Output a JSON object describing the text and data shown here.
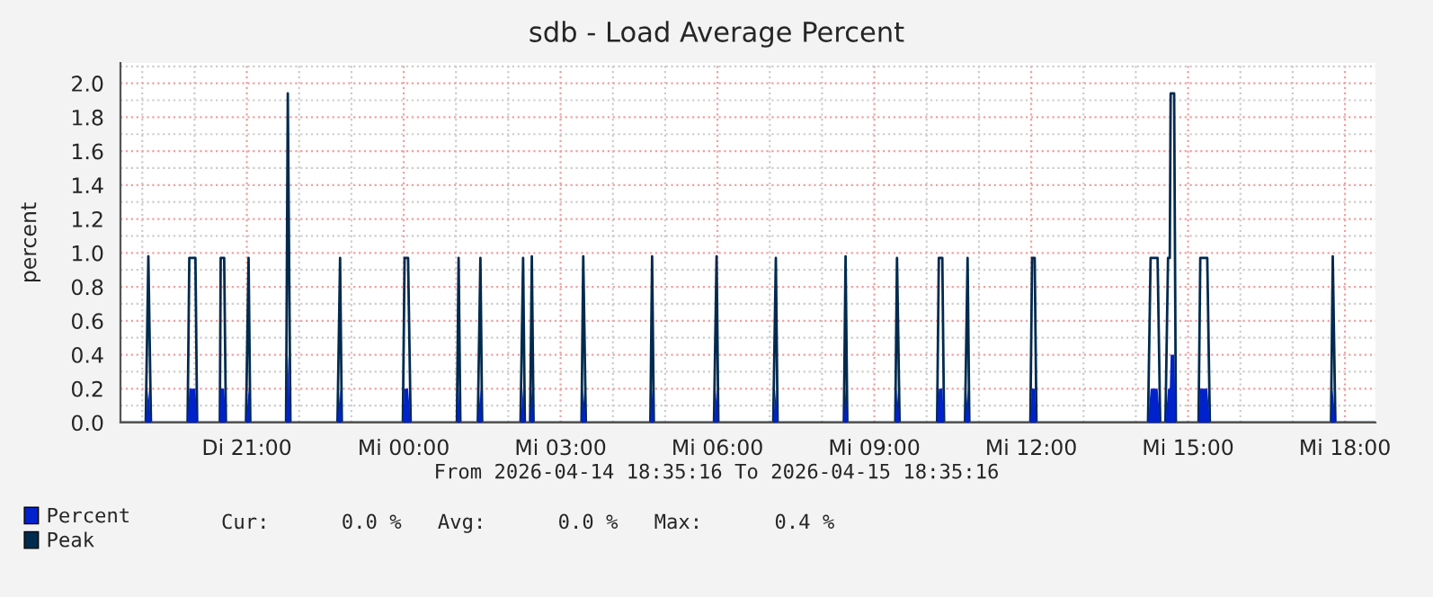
{
  "chart_data": {
    "type": "area",
    "title": "sdb - Load Average Percent",
    "ylabel": "percent",
    "annotations": [
      "From 2026-04-14 18:35:16 To 2026-04-15 18:35:16",
      "Cur:      0.0 %   Avg:      0.0 %   Max:      0.4 %"
    ],
    "xlim": [
      "2026-04-14T18:35",
      "2026-04-15T18:35"
    ],
    "ylim": [
      0,
      2.12
    ],
    "xticks": [
      {
        "value": "2026-04-14T21:00",
        "label": "Di 21:00"
      },
      {
        "value": "2026-04-15T00:00",
        "label": "Mi 00:00"
      },
      {
        "value": "2026-04-15T03:00",
        "label": "Mi 03:00"
      },
      {
        "value": "2026-04-15T06:00",
        "label": "Mi 06:00"
      },
      {
        "value": "2026-04-15T09:00",
        "label": "Mi 09:00"
      },
      {
        "value": "2026-04-15T12:00",
        "label": "Mi 12:00"
      },
      {
        "value": "2026-04-15T15:00",
        "label": "Mi 15:00"
      },
      {
        "value": "2026-04-15T18:00",
        "label": "Mi 18:00"
      }
    ],
    "yticks": [
      {
        "value": 0,
        "label": "0.0"
      },
      {
        "value": 0.2,
        "label": "0.2"
      },
      {
        "value": 0.4,
        "label": "0.4"
      },
      {
        "value": 0.6,
        "label": "0.6"
      },
      {
        "value": 0.8,
        "label": "0.8"
      },
      {
        "value": 1.0,
        "label": "1.0"
      },
      {
        "value": 1.2,
        "label": "1.2"
      },
      {
        "value": 1.4,
        "label": "1.4"
      },
      {
        "value": 1.6,
        "label": "1.6"
      },
      {
        "value": 1.8,
        "label": "1.8"
      },
      {
        "value": 2.0,
        "label": "2.0"
      }
    ],
    "grid": true,
    "legend": "bottom left",
    "x": [
      "2026-04-14T18:36",
      "2026-04-14T19:04",
      "2026-04-14T19:07",
      "2026-04-14T19:10",
      "2026-04-14T19:52",
      "2026-04-14T19:54",
      "2026-04-14T20:01",
      "2026-04-14T20:03",
      "2026-04-14T20:29",
      "2026-04-14T20:30",
      "2026-04-14T20:34",
      "2026-04-14T20:36",
      "2026-04-14T20:59",
      "2026-04-14T21:02",
      "2026-04-14T21:04",
      "2026-04-14T21:45",
      "2026-04-14T21:47",
      "2026-04-14T21:50",
      "2026-04-14T22:44",
      "2026-04-14T22:47",
      "2026-04-14T22:49",
      "2026-04-14T23:59",
      "2026-04-15T00:01",
      "2026-04-15T00:05",
      "2026-04-15T00:08",
      "2026-04-15T01:01",
      "2026-04-15T01:03",
      "2026-04-15T01:05",
      "2026-04-15T01:25",
      "2026-04-15T01:28",
      "2026-04-15T01:30",
      "2026-04-15T02:14",
      "2026-04-15T02:17",
      "2026-04-15T02:19",
      "2026-04-15T02:25",
      "2026-04-15T02:27",
      "2026-04-15T02:29",
      "2026-04-15T03:24",
      "2026-04-15T03:26",
      "2026-04-15T03:29",
      "2026-04-15T04:43",
      "2026-04-15T04:45",
      "2026-04-15T04:47",
      "2026-04-15T05:56",
      "2026-04-15T05:59",
      "2026-04-15T06:01",
      "2026-04-15T07:04",
      "2026-04-15T07:07",
      "2026-04-15T07:09",
      "2026-04-15T08:25",
      "2026-04-15T08:27",
      "2026-04-15T08:29",
      "2026-04-15T09:24",
      "2026-04-15T09:26",
      "2026-04-15T09:29",
      "2026-04-15T10:12",
      "2026-04-15T10:14",
      "2026-04-15T10:18",
      "2026-04-15T10:20",
      "2026-04-15T10:44",
      "2026-04-15T10:47",
      "2026-04-15T10:49",
      "2026-04-15T11:59",
      "2026-04-15T12:01",
      "2026-04-15T12:04",
      "2026-04-15T12:06",
      "2026-04-15T14:14",
      "2026-04-15T14:17",
      "2026-04-15T14:25",
      "2026-04-15T14:28",
      "2026-04-15T14:34",
      "2026-04-15T14:37",
      "2026-04-15T14:39",
      "2026-04-15T14:40",
      "2026-04-15T14:44",
      "2026-04-15T14:46",
      "2026-04-15T15:12",
      "2026-04-15T15:14",
      "2026-04-15T15:22",
      "2026-04-15T15:25",
      "2026-04-15T17:44",
      "2026-04-15T17:46",
      "2026-04-15T17:49",
      "2026-04-15T18:35"
    ],
    "series": [
      {
        "name": "Percent",
        "color": "#0022cc",
        "values": [
          0,
          0,
          0.2,
          0,
          0,
          0.2,
          0.2,
          0,
          0,
          0.2,
          0.2,
          0,
          0,
          0.2,
          0,
          0,
          0.4,
          0,
          0,
          0.2,
          0,
          0,
          0.2,
          0.2,
          0,
          0,
          0.2,
          0,
          0,
          0.2,
          0,
          0,
          0.2,
          0,
          0,
          0.2,
          0,
          0,
          0.2,
          0,
          0,
          0.2,
          0,
          0,
          0.2,
          0,
          0,
          0.2,
          0,
          0,
          0.2,
          0,
          0,
          0.2,
          0,
          0,
          0.2,
          0.2,
          0,
          0,
          0.2,
          0,
          0,
          0.2,
          0.2,
          0,
          0,
          0.2,
          0.2,
          0,
          0,
          0.2,
          0.2,
          0.4,
          0.4,
          0,
          0,
          0.2,
          0.2,
          0,
          0,
          0.2,
          0,
          0
        ]
      },
      {
        "name": "Peak",
        "color": "#002a4e",
        "type": "line",
        "values": [
          0,
          0,
          0.98,
          0,
          0,
          0.97,
          0.97,
          0,
          0,
          0.97,
          0.97,
          0,
          0,
          0.97,
          0,
          0,
          1.94,
          0,
          0,
          0.97,
          0,
          0,
          0.97,
          0.97,
          0,
          0,
          0.97,
          0,
          0,
          0.97,
          0,
          0,
          0.97,
          0,
          0,
          0.98,
          0,
          0,
          0.98,
          0,
          0,
          0.98,
          0,
          0,
          0.98,
          0,
          0,
          0.97,
          0,
          0,
          0.98,
          0,
          0,
          0.97,
          0,
          0,
          0.97,
          0.97,
          0,
          0,
          0.97,
          0,
          0,
          0.97,
          0.97,
          0,
          0,
          0.97,
          0.97,
          0,
          0,
          0.97,
          0.97,
          1.94,
          1.94,
          0,
          0,
          0.97,
          0.97,
          0,
          0,
          0.98,
          0,
          0
        ]
      }
    ]
  }
}
